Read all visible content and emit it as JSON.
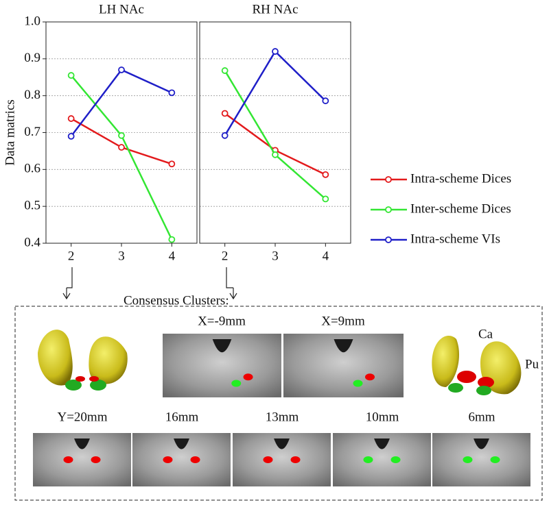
{
  "chart_data": [
    {
      "type": "line",
      "title": "LH NAc",
      "ylabel": "Data matrics",
      "x": [
        2,
        3,
        4
      ],
      "xlim": [
        1.5,
        4.5
      ],
      "xticks": [
        2,
        3,
        4
      ],
      "ylim": [
        0.4,
        1.0
      ],
      "yticks": [
        0.4,
        0.5,
        0.6,
        0.7,
        0.8,
        0.9,
        {
          "value": 1,
          "label": "1.0"
        }
      ],
      "grid": true,
      "legend": "right",
      "series": [
        {
          "name": "Intra-scheme Dices",
          "color": "#e31a1c",
          "values": [
            0.738,
            0.66,
            0.615
          ]
        },
        {
          "name": "Inter-scheme Dices",
          "color": "#33e633",
          "values": [
            0.855,
            0.692,
            0.41
          ]
        },
        {
          "name": "Intra-scheme VIs",
          "color": "#1f1fc8",
          "values": [
            0.69,
            0.87,
            0.808
          ]
        }
      ]
    },
    {
      "type": "line",
      "title": "RH NAc",
      "x": [
        2,
        3,
        4
      ],
      "xlim": [
        1.5,
        4.5
      ],
      "xticks": [
        2,
        3,
        4
      ],
      "ylim": [
        0.4,
        1.0
      ],
      "yticks": [
        0.4,
        0.5,
        0.6,
        0.7,
        0.8,
        0.9,
        1
      ],
      "grid": true,
      "series": [
        {
          "color": "#e31a1c",
          "values": [
            0.752,
            0.652,
            0.586
          ]
        },
        {
          "color": "#33e633",
          "values": [
            0.868,
            0.64,
            0.52
          ]
        },
        {
          "color": "#1f1fc8",
          "values": [
            0.692,
            0.92,
            0.786
          ]
        }
      ]
    }
  ],
  "figure": {
    "caption": "Consensus Clusters:",
    "sagittal": [
      "X=-9mm",
      "X=9mm"
    ],
    "structures": [
      "Ca",
      "Pu"
    ],
    "coronal": [
      "Y=20mm",
      "16mm",
      "13mm",
      "10mm",
      "6mm"
    ]
  }
}
